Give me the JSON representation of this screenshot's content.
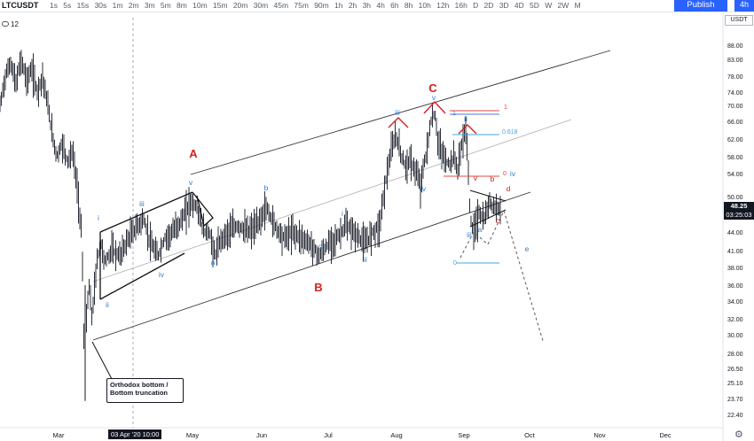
{
  "toolbar": {
    "symbol": "LTCUSDT",
    "intervals": [
      "1s",
      "5s",
      "15s",
      "30s",
      "1m",
      "2m",
      "3m",
      "5m",
      "8m",
      "10m",
      "15m",
      "20m",
      "30m",
      "45m",
      "75m",
      "90m",
      "1h",
      "2h",
      "3h",
      "4h",
      "6h",
      "8h",
      "10h",
      "12h",
      "16h",
      "D",
      "2D",
      "3D",
      "4D",
      "5D",
      "W",
      "2W",
      "M"
    ],
    "publish_label": "Publish",
    "active_interval": "4h"
  },
  "legend": {
    "value": "12"
  },
  "price_axis": {
    "currency": "USDT",
    "ticks": [
      88.0,
      83.0,
      78.0,
      74.0,
      70.0,
      66.0,
      62.0,
      58.0,
      54.0,
      50.0,
      47.0,
      44.0,
      41.0,
      38.0,
      36.0,
      34.0,
      32.0,
      30.0,
      28.0,
      26.5,
      25.1,
      23.7,
      22.4
    ],
    "last_price": "48.25",
    "countdown": "03:25:03"
  },
  "time_axis": {
    "labels": [
      "Mar",
      "May",
      "Jun",
      "Jul",
      "Aug",
      "Sep",
      "Oct",
      "Nov",
      "Dec"
    ],
    "crosshair_label": "03 Apr '20   10:00"
  },
  "chart_data": {
    "type": "line",
    "title": "",
    "symbol": "LTCUSDT",
    "description": "",
    "ylim": [
      21.7,
      96
    ],
    "log_scale": true,
    "series": [
      {
        "values_approx": [
          [
            "Feb",
            68
          ],
          [
            "Feb",
            76
          ],
          [
            "Feb",
            82
          ],
          [
            "Feb",
            74
          ],
          [
            "Feb",
            78
          ],
          [
            "Mar",
            62
          ],
          [
            "Mar",
            58
          ],
          [
            "Mar",
            60
          ],
          [
            "Mar",
            46
          ],
          [
            "Mar",
            38
          ],
          [
            "Mar",
            25
          ],
          [
            "Mar",
            35
          ],
          [
            "Apr",
            44
          ],
          [
            "Apr",
            40
          ],
          [
            "Apr",
            46
          ],
          [
            "Apr",
            43
          ],
          [
            "May",
            50
          ],
          [
            "May",
            40
          ],
          [
            "May",
            44
          ],
          [
            "Jun",
            46
          ],
          [
            "Jun",
            48
          ],
          [
            "Jun",
            44
          ],
          [
            "Jul",
            40
          ],
          [
            "Jul",
            43
          ],
          [
            "Jul",
            46
          ],
          [
            "Jul",
            42
          ],
          [
            "Aug",
            55
          ],
          [
            "Aug",
            65
          ],
          [
            "Aug",
            52
          ],
          [
            "Aug",
            67
          ],
          [
            "Aug",
            56
          ],
          [
            "Sep",
            64
          ],
          [
            "Sep",
            54
          ],
          [
            "Sep",
            45
          ],
          [
            "Sep",
            50
          ],
          [
            "Sep",
            48.25
          ]
        ]
      }
    ],
    "annotations": {
      "wave_labels_red": [
        "A",
        "B",
        "C"
      ],
      "wave_labels_blue": [
        "i",
        "ii",
        "iii",
        "iv",
        "v",
        "a",
        "b",
        "c",
        "i",
        "ii",
        "iii",
        "iv",
        "v",
        "i",
        "ii",
        "iii",
        "iv",
        "v",
        "a",
        "b",
        "c",
        "d",
        "e",
        "v"
      ],
      "fib_labels": [
        "1",
        "0.618",
        "0",
        "1",
        "0"
      ],
      "note": "Orthodox bottom / Bottom truncation"
    }
  },
  "colors": {
    "candles": "#131722",
    "channel": "#222222",
    "channel_mid": "#aaaaaa",
    "red_label": "#d62020",
    "blue_label": "#2f7fd0",
    "fib_red": "#e04444",
    "fib_blue": "#4aa3df",
    "accent": "#2962ff"
  }
}
